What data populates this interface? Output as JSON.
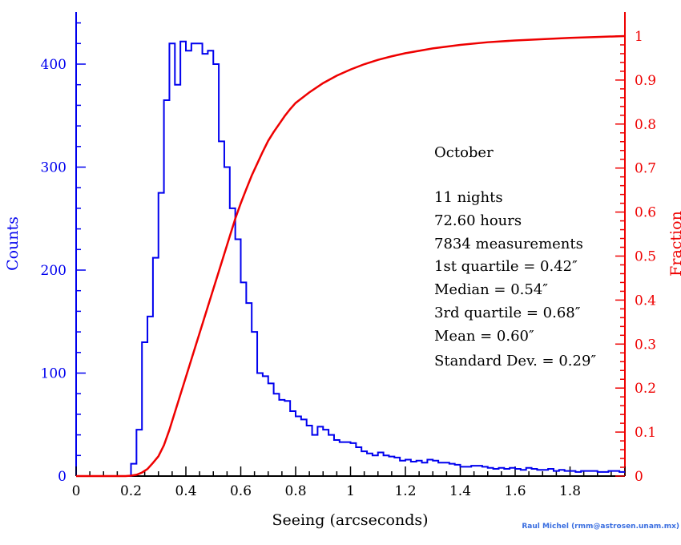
{
  "chart_data": {
    "type": "bar",
    "title": "",
    "xlabel": "Seeing (arcseconds)",
    "ylabel_left": "Counts",
    "ylabel_right": "Fraction",
    "xlim": [
      0,
      2.0
    ],
    "ylim_left": [
      0,
      450
    ],
    "ylim_right": [
      0,
      1.0
    ],
    "x_ticks": [
      "0",
      "0.2",
      "0.4",
      "0.6",
      "0.8",
      "1",
      "1.2",
      "1.4",
      "1.6",
      "1.8"
    ],
    "y_left_ticks": [
      "0",
      "100",
      "200",
      "300",
      "400"
    ],
    "y_right_ticks": [
      "0",
      "0.1",
      "0.2",
      "0.3",
      "0.4",
      "0.5",
      "0.6",
      "0.7",
      "0.8",
      "0.9",
      "1"
    ],
    "bin_width": 0.02,
    "grid": false,
    "colors": {
      "histogram": "#0000ee",
      "cumulative": "#ee0000",
      "axes_left": "#0000ee",
      "axes_right": "#ee0000"
    },
    "series": [
      {
        "name": "Counts",
        "kind": "histogram",
        "x_start": [
          0.18,
          0.2,
          0.22,
          0.24,
          0.26,
          0.28,
          0.3,
          0.32,
          0.34,
          0.36,
          0.38,
          0.4,
          0.42,
          0.44,
          0.46,
          0.48,
          0.5,
          0.52,
          0.54,
          0.56,
          0.58,
          0.6,
          0.62,
          0.64,
          0.66,
          0.68,
          0.7,
          0.72,
          0.74,
          0.76,
          0.78,
          0.8,
          0.82,
          0.84,
          0.86,
          0.88,
          0.9,
          0.92,
          0.94,
          0.96,
          0.98,
          1.0,
          1.02,
          1.04,
          1.06,
          1.08,
          1.1,
          1.12,
          1.14,
          1.16,
          1.18,
          1.2,
          1.22,
          1.24,
          1.26,
          1.28,
          1.3,
          1.32,
          1.34,
          1.36,
          1.38,
          1.4,
          1.42,
          1.44,
          1.46,
          1.48,
          1.5,
          1.52,
          1.54,
          1.56,
          1.58,
          1.6,
          1.62,
          1.64,
          1.66,
          1.68,
          1.7,
          1.72,
          1.74,
          1.76,
          1.78,
          1.8,
          1.82,
          1.84,
          1.86,
          1.88,
          1.9,
          1.92,
          1.94,
          1.96,
          1.98
        ],
        "values": [
          0,
          12,
          45,
          130,
          155,
          212,
          275,
          365,
          420,
          380,
          422,
          413,
          420,
          420,
          410,
          413,
          400,
          325,
          300,
          260,
          230,
          188,
          168,
          140,
          100,
          97,
          90,
          80,
          74,
          73,
          63,
          58,
          55,
          49,
          40,
          48,
          45,
          40,
          35,
          33,
          33,
          32,
          28,
          24,
          22,
          20,
          23,
          20,
          19,
          18,
          15,
          16,
          14,
          15,
          13,
          16,
          15,
          13,
          13,
          12,
          11,
          9,
          9,
          10,
          10,
          9,
          8,
          7,
          8,
          7,
          8,
          7,
          6,
          8,
          7,
          6,
          6,
          7,
          5,
          6,
          5,
          5,
          4,
          5,
          5,
          5,
          4,
          4,
          5,
          5,
          4
        ]
      },
      {
        "name": "Fraction",
        "kind": "line",
        "x": [
          0,
          0.1,
          0.18,
          0.2,
          0.22,
          0.24,
          0.26,
          0.28,
          0.3,
          0.32,
          0.34,
          0.36,
          0.38,
          0.4,
          0.42,
          0.44,
          0.46,
          0.48,
          0.5,
          0.52,
          0.54,
          0.56,
          0.58,
          0.6,
          0.62,
          0.64,
          0.66,
          0.68,
          0.7,
          0.72,
          0.74,
          0.76,
          0.78,
          0.8,
          0.85,
          0.9,
          0.95,
          1.0,
          1.05,
          1.1,
          1.15,
          1.2,
          1.3,
          1.4,
          1.5,
          1.6,
          1.7,
          1.8,
          1.9,
          2.0
        ],
        "values": [
          0,
          0,
          0,
          0.001,
          0.003,
          0.008,
          0.016,
          0.03,
          0.045,
          0.07,
          0.105,
          0.145,
          0.185,
          0.225,
          0.265,
          0.305,
          0.345,
          0.385,
          0.425,
          0.465,
          0.505,
          0.545,
          0.585,
          0.62,
          0.652,
          0.683,
          0.71,
          0.737,
          0.762,
          0.782,
          0.8,
          0.818,
          0.834,
          0.848,
          0.872,
          0.893,
          0.91,
          0.924,
          0.936,
          0.946,
          0.954,
          0.961,
          0.972,
          0.98,
          0.986,
          0.99,
          0.993,
          0.996,
          0.998,
          1.0
        ]
      }
    ],
    "annotations": [
      "October",
      "11 nights",
      "72.60 hours",
      "7834 measurements",
      "1st quartile = 0.42″",
      "Median = 0.54″",
      "3rd quartile = 0.68″",
      "Mean = 0.60″",
      "Standard Dev. = 0.29″"
    ]
  },
  "credit": "Raul Michel (rmm@astrosen.unam.mx)"
}
